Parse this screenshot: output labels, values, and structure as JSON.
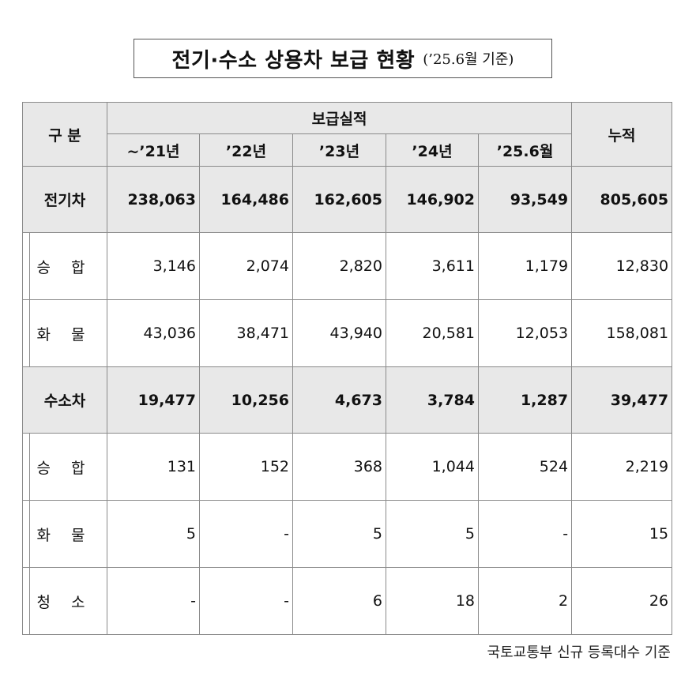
{
  "title": {
    "main": "전기·수소 상용차 보급 현황",
    "note": "(’25.6월 기준)"
  },
  "table": {
    "header": {
      "category": "구 분",
      "group": "보급실적",
      "years": [
        "~’21년",
        "’22년",
        "’23년",
        "’24년",
        "’25.6월"
      ],
      "cumulative": "누적"
    },
    "rows": [
      {
        "label": "전기차",
        "type": "main",
        "values": [
          "238,063",
          "164,486",
          "162,605",
          "146,902",
          "93,549",
          "805,605"
        ]
      },
      {
        "label": "승 합",
        "type": "sub",
        "values": [
          "3,146",
          "2,074",
          "2,820",
          "3,611",
          "1,179",
          "12,830"
        ]
      },
      {
        "label": "화 물",
        "type": "sub",
        "values": [
          "43,036",
          "38,471",
          "43,940",
          "20,581",
          "12,053",
          "158,081"
        ]
      },
      {
        "label": "수소차",
        "type": "main",
        "values": [
          "19,477",
          "10,256",
          "4,673",
          "3,784",
          "1,287",
          "39,477"
        ]
      },
      {
        "label": "승 합",
        "type": "sub",
        "values": [
          "131",
          "152",
          "368",
          "1,044",
          "524",
          "2,219"
        ]
      },
      {
        "label": "화 물",
        "type": "sub",
        "values": [
          "5",
          "-",
          "5",
          "5",
          "-",
          "15"
        ]
      },
      {
        "label": "청 소",
        "type": "sub",
        "values": [
          "-",
          "-",
          "6",
          "18",
          "2",
          "26"
        ]
      }
    ]
  },
  "footnote": "국토교통부 신규 등록대수 기준"
}
